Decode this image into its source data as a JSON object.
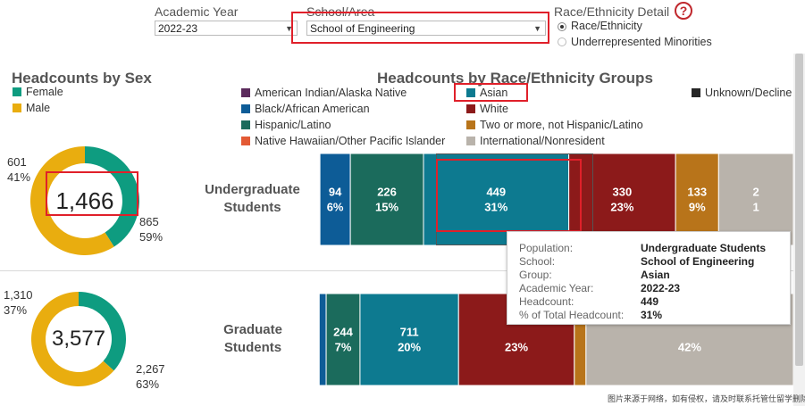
{
  "filters": {
    "year_label": "Academic Year",
    "year_value": "2022-23",
    "school_label": "School/Area",
    "school_value": "School of Engineering",
    "detail_label": "Race/Ethnicity Detail",
    "help_icon": "?",
    "options": [
      "Race/Ethnicity",
      "Underrepresented Minorities"
    ],
    "selected_option": 0
  },
  "sex_panel": {
    "title": "Headcounts by Sex",
    "legend": [
      {
        "label": "Female",
        "color": "#0e9c80"
      },
      {
        "label": "Male",
        "color": "#e9ad0f"
      }
    ]
  },
  "race_panel": {
    "title": "Headcounts by Race/Ethnicity Groups",
    "legend": [
      {
        "label": "American Indian/Alaska Native",
        "color": "#5b2a5c"
      },
      {
        "label": "Black/African American",
        "color": "#0d5c97"
      },
      {
        "label": "Hispanic/Latino",
        "color": "#1b6b5c"
      },
      {
        "label": "Native Hawaiian/Other Pacific Islander",
        "color": "#e35a34"
      },
      {
        "label": "Asian",
        "color": "#0d7a90"
      },
      {
        "label": "White",
        "color": "#8c1a1a"
      },
      {
        "label": "Two or more, not Hispanic/Latino",
        "color": "#b8741a"
      },
      {
        "label": "International/Nonresident",
        "color": "#b9b3ab"
      },
      {
        "label": "Unknown/Decline",
        "color": "#262626"
      }
    ]
  },
  "chart_data": [
    {
      "type": "pie",
      "subtype": "donut",
      "title": "Headcounts by Sex",
      "row": "Undergraduate Students",
      "total_label": "1,466",
      "series": [
        {
          "name": "Female",
          "value": 601,
          "value_label": "601",
          "pct_label": "41%",
          "color": "#0e9c80"
        },
        {
          "name": "Male",
          "value": 865,
          "value_label": "865",
          "pct_label": "59%",
          "color": "#e9ad0f"
        }
      ]
    },
    {
      "type": "pie",
      "subtype": "donut",
      "title": "Headcounts by Sex",
      "row": "Graduate Students",
      "total_label": "3,577",
      "series": [
        {
          "name": "Female",
          "value": 1310,
          "value_label": "1,310",
          "pct_label": "37%",
          "color": "#0e9c80"
        },
        {
          "name": "Male",
          "value": 2267,
          "value_label": "2,267",
          "pct_label": "63%",
          "color": "#e9ad0f"
        }
      ]
    },
    {
      "type": "bar",
      "subtype": "100% stacked horizontal",
      "title": "Headcounts by Race/Ethnicity Groups",
      "categories": [
        "Undergraduate Students",
        "Graduate Students"
      ],
      "series": [
        {
          "name": "American Indian/Alaska Native",
          "values": [
            3,
            2
          ],
          "labels": [
            "",
            ""
          ],
          "color": "#5b2a5c"
        },
        {
          "name": "Black/African American",
          "values": [
            94,
            50
          ],
          "labels": [
            "94\n6%",
            ""
          ],
          "color": "#0d5c97"
        },
        {
          "name": "Hispanic/Latino",
          "values": [
            226,
            244
          ],
          "labels": [
            "226\n15%",
            "244\n7%"
          ],
          "color": "#1b6b5c"
        },
        {
          "name": "Native Hawaiian/Other Pacific Islander",
          "values": [
            0,
            0
          ],
          "labels": [
            "",
            ""
          ],
          "color": "#e35a34"
        },
        {
          "name": "Asian",
          "values": [
            449,
            711
          ],
          "labels": [
            "449\n31%",
            "711\n20%"
          ],
          "color": "#0d7a90"
        },
        {
          "name": "White",
          "values": [
            330,
            835
          ],
          "labels": [
            "330\n23%",
            "\n23%"
          ],
          "color": "#8c1a1a"
        },
        {
          "name": "Two or more, not Hispanic/Latino",
          "values": [
            133,
            84
          ],
          "labels": [
            "133\n9%",
            ""
          ],
          "color": "#b8741a"
        },
        {
          "name": "International/Nonresident",
          "values": [
            231,
            1496
          ],
          "labels": [
            "2\n1",
            "\n42%"
          ],
          "color": "#b9b3ab"
        }
      ]
    }
  ],
  "tooltip": {
    "rows": [
      {
        "key": "Population:",
        "value": "Undergraduate Students"
      },
      {
        "key": "School:",
        "value": "School of Engineering"
      },
      {
        "key": "Group:",
        "value": "Asian"
      },
      {
        "key": "Academic Year:",
        "value": "2022-23"
      },
      {
        "key": "Headcount:",
        "value": "449"
      },
      {
        "key": "% of Total Headcount:",
        "value": "31%"
      }
    ]
  },
  "footer_note": "图片来源于网络，如有侵权，请及时联系托管仕留学删除"
}
